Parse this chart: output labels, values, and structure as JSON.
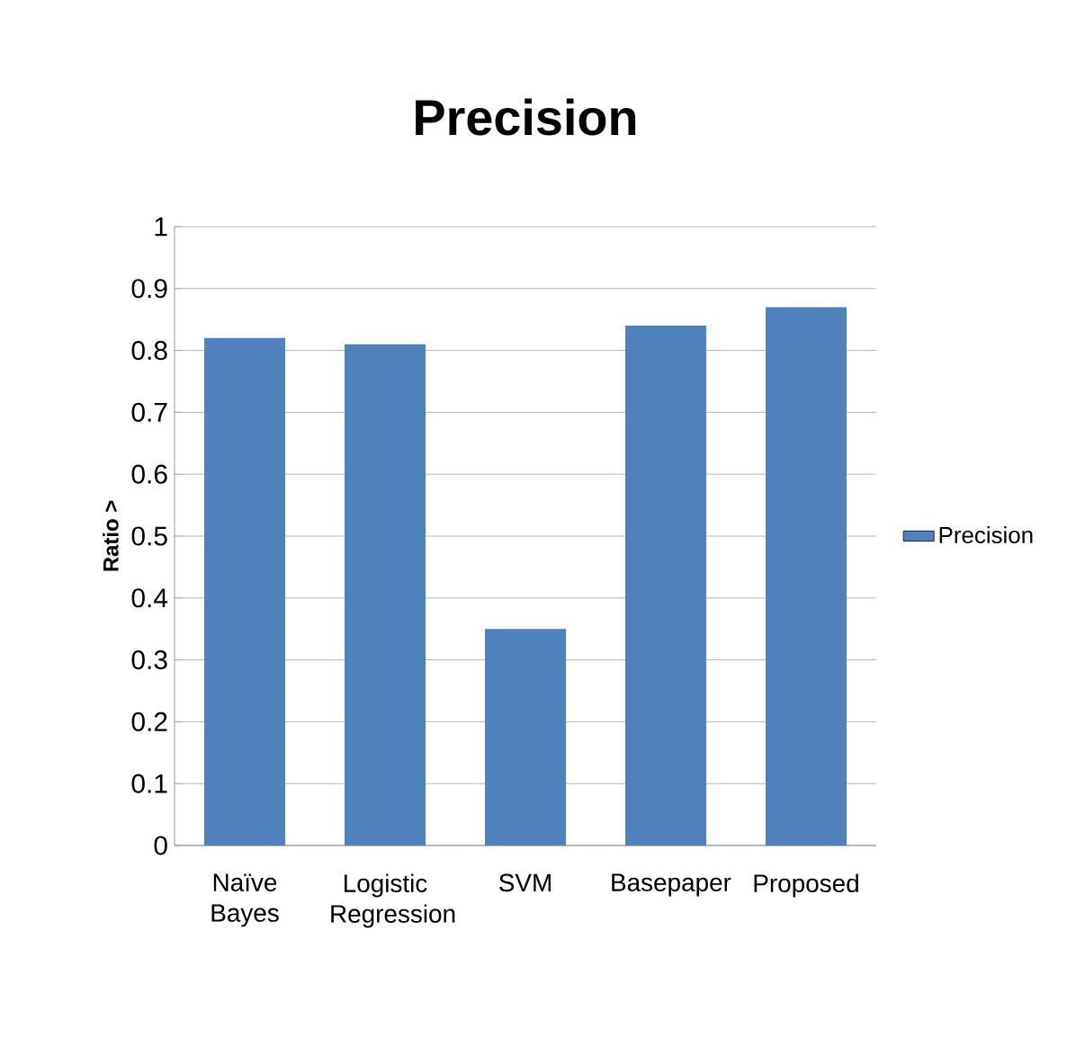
{
  "chart_data": {
    "type": "bar",
    "title": "Precision",
    "ylabel": "Ratio >",
    "categories": [
      "Naïve Bayes",
      "Logistic Regression",
      "SVM",
      "Basepaper",
      "Proposed"
    ],
    "series": [
      {
        "name": "Precision",
        "color": "#4f81bd",
        "values": [
          0.82,
          0.81,
          0.35,
          0.84,
          0.87
        ]
      }
    ],
    "ylim": [
      0,
      1
    ],
    "yticks": [
      0,
      0.1,
      0.2,
      0.3,
      0.4,
      0.5,
      0.6,
      0.7,
      0.8,
      0.9,
      1
    ],
    "grid": "y",
    "legend": "right"
  }
}
